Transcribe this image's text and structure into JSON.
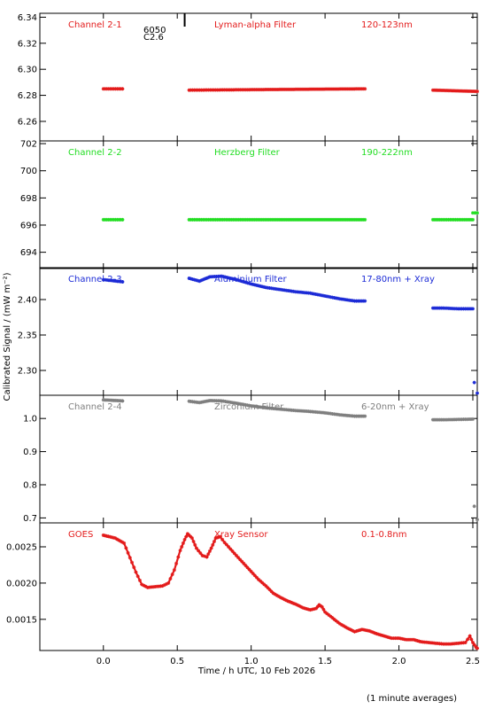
{
  "page": {
    "ylabel": "Calibrated Signal / (mW m⁻²)",
    "xlabel": "Time / h UTC, 10 Feb 2026",
    "footnote": "(1 minute averages)"
  },
  "chart_data": {
    "type": "scatter",
    "x_range": [
      -0.43,
      2.53
    ],
    "x_ticks": [
      0.0,
      0.5,
      1.0,
      1.5,
      2.0,
      2.5
    ],
    "x_tick_labels": [
      "0.0",
      "0.5",
      "1.0",
      "1.5",
      "2.0",
      "2.5"
    ],
    "flare_marker": {
      "x": 0.55,
      "label_top": "6050",
      "label_bottom": "C2.6"
    },
    "panels": [
      {
        "name": "Channel 2-1",
        "filter": "Lyman-alpha Filter",
        "band": "120-123nm",
        "color": "#e31b1b",
        "ylim": [
          6.245,
          6.343
        ],
        "y_ticks": [
          6.26,
          6.28,
          6.3,
          6.32,
          6.34
        ],
        "y_tick_labels": [
          "6.26",
          "6.28",
          "6.30",
          "6.32",
          "6.34"
        ],
        "segments": [
          {
            "x": [
              0.0,
              0.13
            ],
            "y": [
              6.285,
              6.285
            ]
          },
          {
            "x": [
              0.58,
              1.77
            ],
            "y": [
              6.284,
              6.285
            ]
          },
          {
            "x": [
              2.23,
              2.53
            ],
            "y": [
              6.284,
              6.283
            ]
          }
        ]
      },
      {
        "name": "Channel 2-2",
        "filter": "Herzberg Filter",
        "band": "190-222nm",
        "color": "#22dd22",
        "ylim": [
          692.8,
          702.2
        ],
        "y_ticks": [
          694,
          696,
          698,
          700,
          702
        ],
        "y_tick_labels": [
          "694",
          "696",
          "698",
          "700",
          "702"
        ],
        "segments": [
          {
            "x": [
              0.0,
              0.13
            ],
            "y": [
              696.4,
              696.4
            ]
          },
          {
            "x": [
              0.58,
              1.77
            ],
            "y": [
              696.4,
              696.4
            ]
          },
          {
            "x": [
              2.23,
              2.5
            ],
            "y": [
              696.4,
              696.4
            ]
          },
          {
            "x": [
              2.5,
              2.53
            ],
            "y": [
              696.9,
              696.9
            ]
          }
        ]
      },
      {
        "name": "Channel 2-3",
        "filter": "Aluminium Filter",
        "band": "17-80nm + Xray",
        "color": "#1c2bd6",
        "ylim": [
          2.265,
          2.445
        ],
        "y_ticks": [
          2.3,
          2.35,
          2.4
        ],
        "y_tick_labels": [
          "2.30",
          "2.35",
          "2.40"
        ],
        "segments": [
          {
            "x": [
              0.0,
              0.05,
              0.13
            ],
            "y": [
              2.428,
              2.427,
              2.425
            ]
          },
          {
            "x": [
              0.58,
              0.65,
              0.72,
              0.8,
              0.9,
              1.0,
              1.1,
              1.2,
              1.3,
              1.4,
              1.5,
              1.6,
              1.7,
              1.77
            ],
            "y": [
              2.43,
              2.426,
              2.432,
              2.433,
              2.428,
              2.422,
              2.417,
              2.414,
              2.411,
              2.409,
              2.405,
              2.401,
              2.398,
              2.398
            ]
          },
          {
            "x": [
              2.23,
              2.3,
              2.4,
              2.5
            ],
            "y": [
              2.388,
              2.388,
              2.387,
              2.387
            ]
          }
        ],
        "outliers": [
          {
            "x": 2.51,
            "y": 2.283
          },
          {
            "x": 2.53,
            "y": 2.268
          }
        ]
      },
      {
        "name": "Channel 2-4",
        "filter": "Zirconium Filter",
        "band": "6-20nm + Xray",
        "color": "#7f7f7f",
        "ylim": [
          0.685,
          1.07
        ],
        "y_ticks": [
          0.7,
          0.8,
          0.9,
          1.0
        ],
        "y_tick_labels": [
          "0.7",
          "0.8",
          "0.9",
          "1.0"
        ],
        "segments": [
          {
            "x": [
              0.0,
              0.05,
              0.13
            ],
            "y": [
              1.056,
              1.055,
              1.053
            ]
          },
          {
            "x": [
              0.58,
              0.65,
              0.72,
              0.8,
              0.9,
              1.0,
              1.1,
              1.2,
              1.3,
              1.4,
              1.5,
              1.6,
              1.7,
              1.77
            ],
            "y": [
              1.052,
              1.048,
              1.054,
              1.053,
              1.046,
              1.038,
              1.032,
              1.028,
              1.024,
              1.021,
              1.017,
              1.011,
              1.007,
              1.007
            ]
          },
          {
            "x": [
              2.23,
              2.3,
              2.4,
              2.5
            ],
            "y": [
              0.996,
              0.996,
              0.997,
              0.998
            ]
          }
        ],
        "outliers": [
          {
            "x": 2.51,
            "y": 0.735
          },
          {
            "x": 2.53,
            "y": 0.695
          }
        ]
      },
      {
        "name": "GOES",
        "filter": "Xray Sensor",
        "band": "0.1-0.8nm",
        "color": "#e31b1b",
        "ylim": [
          0.00107,
          0.00283
        ],
        "y_ticks": [
          0.0015,
          0.002,
          0.0025
        ],
        "y_tick_labels": [
          "0.0015",
          "0.0020",
          "0.0025"
        ],
        "segments": [
          {
            "x": [
              0.0,
              0.08,
              0.14,
              0.18,
              0.22,
              0.26,
              0.3,
              0.35,
              0.4,
              0.44,
              0.48,
              0.52,
              0.55,
              0.57,
              0.6,
              0.63,
              0.67,
              0.7,
              0.73,
              0.76,
              0.79,
              0.82,
              0.86,
              0.9,
              0.95,
              1.0,
              1.05,
              1.1,
              1.15,
              1.2,
              1.25,
              1.3,
              1.35,
              1.4,
              1.44,
              1.46,
              1.48,
              1.5,
              1.55,
              1.6,
              1.65,
              1.7,
              1.75,
              1.8,
              1.85,
              1.9,
              1.95,
              2.0,
              2.05,
              2.1,
              2.15,
              2.2,
              2.25,
              2.3,
              2.35,
              2.4,
              2.45,
              2.48,
              2.5,
              2.52,
              2.53
            ],
            "y": [
              0.00266,
              0.00262,
              0.00255,
              0.00235,
              0.00215,
              0.00198,
              0.00194,
              0.00195,
              0.00196,
              0.002,
              0.00218,
              0.00245,
              0.0026,
              0.00268,
              0.00262,
              0.00248,
              0.00238,
              0.00236,
              0.00248,
              0.00262,
              0.00264,
              0.00256,
              0.00247,
              0.00238,
              0.00227,
              0.00216,
              0.00205,
              0.00196,
              0.00186,
              0.0018,
              0.00175,
              0.00171,
              0.00166,
              0.00163,
              0.00165,
              0.0017,
              0.00167,
              0.0016,
              0.00152,
              0.00144,
              0.00138,
              0.00133,
              0.00136,
              0.00134,
              0.0013,
              0.00127,
              0.00124,
              0.00124,
              0.00122,
              0.00122,
              0.00119,
              0.00118,
              0.00117,
              0.00116,
              0.00116,
              0.00117,
              0.00118,
              0.00127,
              0.00118,
              0.00112,
              0.0011
            ]
          }
        ]
      }
    ]
  }
}
